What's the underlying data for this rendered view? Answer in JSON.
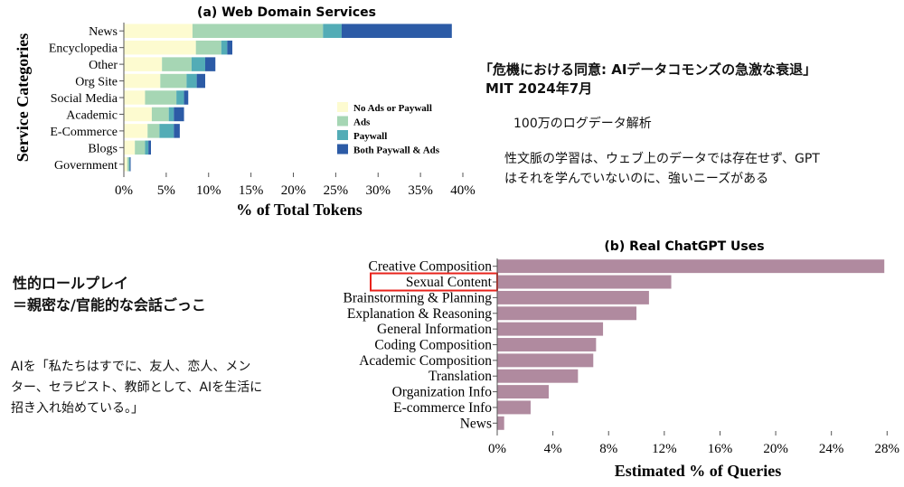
{
  "annotations": {
    "paper_title": "「危機における同意: AIデータコモンズの急激な衰退」",
    "paper_source": "MIT 2024年7月",
    "log_analysis": "100万のログデータ解析",
    "insight_line1": "性文脈の学習は、ウェブ上のデータでは存在せず、GPT",
    "insight_line2": "はそれを学んでいないのに、強いニーズがある",
    "roleplay_line1": "性的ロールプレイ",
    "roleplay_line2": "＝親密な/官能的な会話ごっこ",
    "quote_line1": "AIを「私たちはすでに、友人、恋人、メン",
    "quote_line2": "ター、セラピスト、教師として、AIを生活に",
    "quote_line3": "招き入れ始めている。」"
  },
  "chart_data": [
    {
      "type": "bar",
      "orientation": "horizontal",
      "stacked": true,
      "title": "(a) Web Domain Services",
      "xlabel": "% of Total Tokens",
      "ylabel": "Service Categories",
      "xlim": [
        0,
        40
      ],
      "x_ticks": [
        "0%",
        "5%",
        "10%",
        "15%",
        "20%",
        "25%",
        "30%",
        "35%",
        "40%"
      ],
      "legend_position": "right",
      "categories": [
        "News",
        "Encyclopedia",
        "Other",
        "Org Site",
        "Social Media",
        "Academic",
        "E-Commerce",
        "Blogs",
        "Government"
      ],
      "series": [
        {
          "name": "No Ads or Paywall",
          "color": "#fdfbd0",
          "values": [
            8.1,
            8.5,
            4.5,
            4.3,
            2.5,
            3.3,
            2.8,
            1.3,
            0.4
          ]
        },
        {
          "name": "Ads",
          "color": "#a6d6b4",
          "values": [
            15.4,
            3.0,
            3.5,
            3.1,
            3.7,
            2.0,
            1.4,
            1.2,
            0.2
          ]
        },
        {
          "name": "Paywall",
          "color": "#53acb6",
          "values": [
            2.2,
            0.7,
            1.6,
            1.2,
            0.9,
            0.6,
            1.7,
            0.4,
            0.1
          ]
        },
        {
          "name": "Both Paywall & Ads",
          "color": "#2c5ba6",
          "values": [
            13.0,
            0.6,
            1.2,
            1.0,
            0.5,
            1.2,
            0.7,
            0.3,
            0.1
          ]
        }
      ]
    },
    {
      "type": "bar",
      "orientation": "horizontal",
      "title": "(b) Real ChatGPT Uses",
      "xlabel": "Estimated % of Queries",
      "xlim": [
        0,
        28.5
      ],
      "x_ticks": [
        "0%",
        "4%",
        "8%",
        "12%",
        "16%",
        "20%",
        "24%",
        "28%"
      ],
      "bar_color": "#b08a9f",
      "highlight": {
        "category": "Sexual Content",
        "color": "#e8231c"
      },
      "categories": [
        "Creative Composition",
        "Sexual Content",
        "Brainstorming & Planning",
        "Explanation & Reasoning",
        "General Information",
        "Coding Composition",
        "Academic Composition",
        "Translation",
        "Organization Info",
        "E-commerce Info",
        "News"
      ],
      "values": [
        27.8,
        12.5,
        10.9,
        10.0,
        7.6,
        7.1,
        6.9,
        5.8,
        3.7,
        2.4,
        0.5
      ]
    }
  ]
}
